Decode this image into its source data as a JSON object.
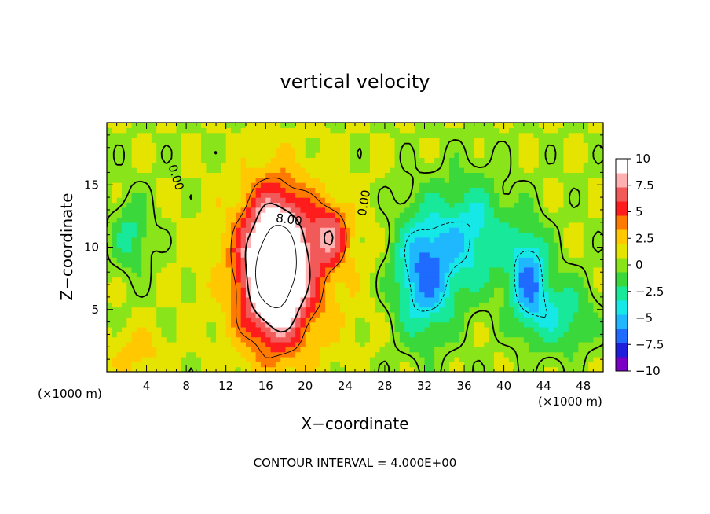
{
  "chart_data": {
    "type": "heatmap",
    "title": "vertical velocity",
    "xlabel": "X−coordinate",
    "ylabel": "Z−coordinate",
    "x_unit": "(×1000 m)",
    "x_unit_right": "(×1000 m)",
    "footer": "CONTOUR INTERVAL = 4.000E+00",
    "xlim": [
      0,
      50
    ],
    "ylim": [
      0,
      20
    ],
    "x_ticks": [
      4,
      8,
      12,
      16,
      20,
      24,
      28,
      32,
      36,
      40,
      44,
      48
    ],
    "y_ticks": [
      5,
      10,
      15
    ],
    "x_tick_labels": [
      "4",
      "8",
      "12",
      "16",
      "20",
      "24",
      "28",
      "32",
      "36",
      "40",
      "44",
      "48"
    ],
    "y_tick_labels": [
      "5",
      "10",
      "15"
    ],
    "colorbar": {
      "range": [
        -10,
        10
      ],
      "tick_values": [
        10,
        7.5,
        5,
        2.5,
        0,
        -2.5,
        -5,
        -7.5,
        -10
      ],
      "tick_labels": [
        "10",
        "7.5",
        "5",
        "2.5",
        "0",
        "−2.5",
        "−5",
        "−7.5",
        "−10"
      ],
      "colors": [
        "#7b00c6",
        "#1e1edc",
        "#1f6bff",
        "#1fb8ff",
        "#16e8e8",
        "#18e89a",
        "#3ad83a",
        "#8ae41a",
        "#e4e400",
        "#ffc800",
        "#ff7a00",
        "#ff1c1c",
        "#f25a5a",
        "#ffb0b0",
        "#ffffff"
      ]
    },
    "contour_labels": [
      {
        "text": "0.00",
        "x": 6.6,
        "z": 15.5,
        "rotate": 72
      },
      {
        "text": "8.00",
        "x": 18.3,
        "z": 11.9,
        "rotate": 8
      },
      {
        "text": "0.00",
        "x": 26.3,
        "z": 13.5,
        "rotate": -80
      }
    ],
    "features": [
      {
        "name": "updraft-core",
        "x": 17,
        "z": 8.5,
        "sx": 3.2,
        "sz": 5.5,
        "w": 13
      },
      {
        "name": "updraft-arm",
        "x": 22.5,
        "z": 11,
        "sx": 1.8,
        "sz": 2.5,
        "w": 5
      },
      {
        "name": "warm-column",
        "x": 18,
        "z": 8,
        "sx": 6.5,
        "sz": 7,
        "w": 3
      },
      {
        "name": "downdraft-1",
        "x": 32,
        "z": 8,
        "sx": 3,
        "sz": 5,
        "w": -7
      },
      {
        "name": "downdraft-2",
        "x": 37,
        "z": 11,
        "sx": 3.5,
        "sz": 4.5,
        "w": -4.5
      },
      {
        "name": "downdraft-3",
        "x": 42.5,
        "z": 7.5,
        "sx": 2,
        "sz": 4,
        "w": -6.5
      },
      {
        "name": "downdraft-4",
        "x": 46,
        "z": 4.5,
        "sx": 3,
        "sz": 3,
        "w": -3.5
      },
      {
        "name": "left-downdraft",
        "x": 2.5,
        "z": 11,
        "sx": 2,
        "sz": 3,
        "w": -3
      },
      {
        "name": "left-low-updraft",
        "x": 3,
        "z": 1.5,
        "sx": 3,
        "sz": 2,
        "w": 2
      }
    ]
  }
}
